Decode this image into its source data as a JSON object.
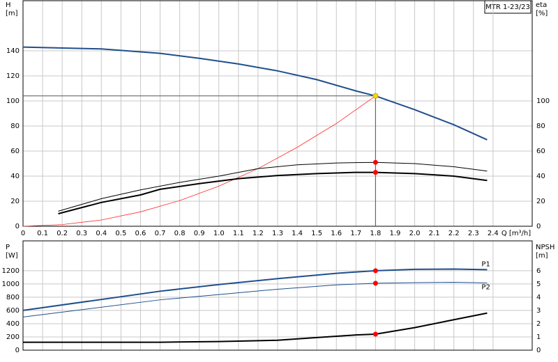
{
  "chart_data": [
    {
      "type": "line",
      "legend_text": "MTR 1-23/23",
      "y_label": [
        "H",
        "[m]"
      ],
      "y2_label": [
        "eta",
        "[%]"
      ],
      "x_label": "Q [m³/h]",
      "xlim": [
        0,
        2.6
      ],
      "xticks": [
        0,
        0.1,
        0.2,
        0.3,
        0.4,
        0.5,
        0.6,
        0.7,
        0.8,
        0.9,
        {
          "value": 1,
          "label": "1.0"
        },
        1.1,
        1.2,
        1.3,
        1.4,
        1.5,
        1.6,
        1.7,
        1.8,
        1.9,
        {
          "value": 2,
          "label": "2.0"
        },
        2.1,
        2.2,
        2.3,
        2.4
      ],
      "ylim": [
        0,
        180
      ],
      "yticks": [
        0,
        20,
        40,
        60,
        80,
        100,
        120,
        140
      ],
      "y2lim": [
        0,
        180
      ],
      "y2ticks": [
        0,
        20,
        40,
        60,
        80,
        100
      ],
      "grid": true,
      "duty_q": 1.8,
      "duty_line": true,
      "series": [
        {
          "color": "#1f4e8c",
          "width": 2,
          "marker": "#ffd700",
          "x": [
            0,
            0.4,
            0.7,
            0.9,
            1.1,
            1.3,
            1.5,
            1.7,
            1.8,
            2.0,
            2.2,
            2.37
          ],
          "values": [
            143,
            141.5,
            138,
            134,
            129.5,
            124,
            117,
            108,
            104,
            93,
            81,
            69
          ]
        },
        {
          "color": "#ff2a2a",
          "width": 0.8,
          "x": [
            0,
            0.2,
            0.4,
            0.6,
            0.8,
            1.0,
            1.2,
            1.4,
            1.6,
            1.8
          ],
          "values": [
            0,
            1.3,
            5,
            11.5,
            20.5,
            32,
            46,
            63,
            82,
            104
          ]
        },
        {
          "color": "#000000",
          "width": 1,
          "axis": "y2",
          "marker": "#ff0000",
          "x": [
            0.18,
            0.4,
            0.6,
            0.8,
            1.0,
            1.2,
            1.4,
            1.6,
            1.8,
            2.0,
            2.2,
            2.37
          ],
          "values": [
            12,
            22,
            29,
            35,
            40,
            46,
            49,
            50.5,
            51,
            50,
            47.5,
            44
          ]
        },
        {
          "color": "#000000",
          "width": 2,
          "axis": "y2",
          "marker": "#ff0000",
          "x": [
            0.18,
            0.4,
            0.6,
            0.7,
            0.9,
            1.1,
            1.3,
            1.5,
            1.7,
            1.8,
            2.0,
            2.2,
            2.37
          ],
          "values": [
            10,
            19,
            25,
            29.5,
            34,
            38,
            40.5,
            42,
            43,
            43,
            42,
            40,
            36.5
          ]
        }
      ]
    },
    {
      "type": "line",
      "y_label": [
        "P",
        "[W]"
      ],
      "y2_label": [
        "NPSH",
        "[m]"
      ],
      "xlim": [
        0,
        2.6
      ],
      "ylim": [
        0,
        1650
      ],
      "yticks": [
        0,
        200,
        400,
        600,
        800,
        1000,
        1200
      ],
      "y2lim": [
        0,
        8.25
      ],
      "y2ticks": [
        0,
        1,
        2,
        3,
        4,
        5,
        6
      ],
      "grid": true,
      "duty_q": 1.8,
      "series": [
        {
          "name": "P1",
          "color": "#1f4e8c",
          "width": 2,
          "marker": "#ff0000",
          "x": [
            0,
            0.7,
            1.0,
            1.3,
            1.6,
            1.8,
            2.0,
            2.2,
            2.37
          ],
          "values": [
            600,
            890,
            990,
            1080,
            1160,
            1200,
            1220,
            1225,
            1215
          ]
        },
        {
          "name": "P2",
          "color": "#1f4e8c",
          "width": 1,
          "marker": "#ff0000",
          "x": [
            0,
            0.7,
            1.0,
            1.3,
            1.6,
            1.8,
            2.0,
            2.2,
            2.37
          ],
          "values": [
            500,
            760,
            840,
            920,
            985,
            1010,
            1020,
            1025,
            1015
          ]
        },
        {
          "color": "#000000",
          "width": 2,
          "axis": "y2",
          "marker": "#ff0000",
          "x": [
            0,
            0.7,
            1.0,
            1.3,
            1.5,
            1.7,
            1.8,
            2.0,
            2.2,
            2.37
          ],
          "values": [
            0.6,
            0.6,
            0.65,
            0.75,
            0.95,
            1.15,
            1.21,
            1.7,
            2.3,
            2.8
          ]
        }
      ]
    }
  ]
}
